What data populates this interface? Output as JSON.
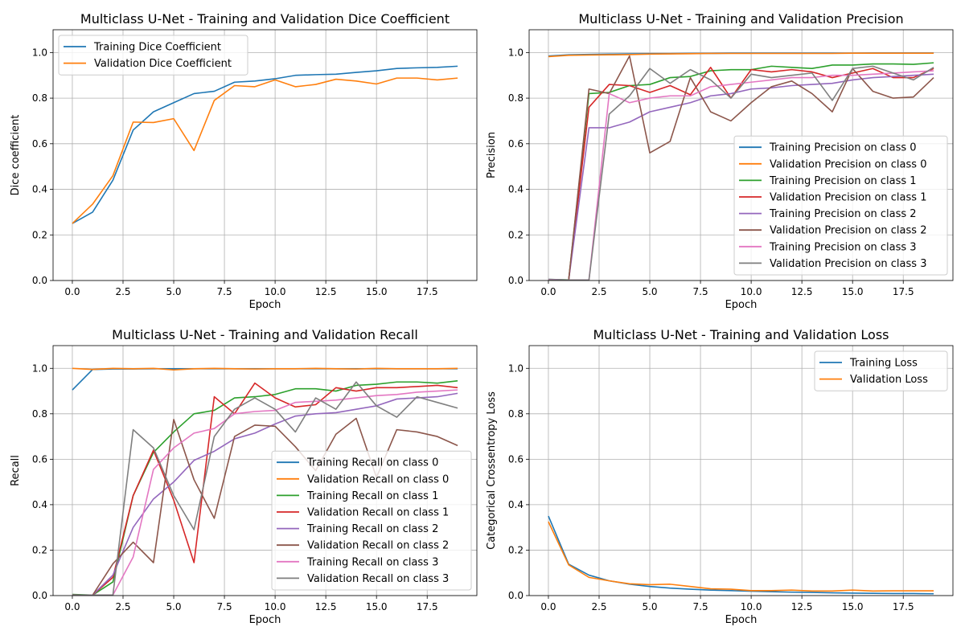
{
  "colors": [
    "#1f77b4",
    "#ff7f0e",
    "#2ca02c",
    "#d62728",
    "#9467bd",
    "#8c564b",
    "#e377c2",
    "#7f7f7f"
  ],
  "chart_data": [
    {
      "type": "line",
      "title": "Multiclass U-Net - Training and Validation Dice Coefficient",
      "xlabel": "Epoch",
      "ylabel": "Dice coefficient",
      "xlim": [
        -0.95,
        19.95
      ],
      "ylim": [
        0,
        1.1
      ],
      "xticks": [
        0,
        2.5,
        5,
        7.5,
        10,
        12.5,
        15,
        17.5
      ],
      "yticks": [
        0,
        0.2,
        0.4,
        0.6,
        0.8,
        1.0
      ],
      "grid": true,
      "legend_position": "top-left",
      "x": [
        0,
        1,
        2,
        3,
        4,
        5,
        6,
        7,
        8,
        9,
        10,
        11,
        12,
        13,
        14,
        15,
        16,
        17,
        18,
        19
      ],
      "series": [
        {
          "name": "Training Dice Coefficient",
          "values": [
            0.25,
            0.3,
            0.44,
            0.66,
            0.74,
            0.78,
            0.82,
            0.83,
            0.87,
            0.875,
            0.885,
            0.9,
            0.903,
            0.905,
            0.913,
            0.92,
            0.93,
            0.933,
            0.935,
            0.94
          ]
        },
        {
          "name": "Validation Dice Coefficient",
          "values": [
            0.25,
            0.335,
            0.46,
            0.695,
            0.693,
            0.71,
            0.57,
            0.79,
            0.855,
            0.85,
            0.88,
            0.85,
            0.86,
            0.883,
            0.875,
            0.862,
            0.888,
            0.888,
            0.88,
            0.888
          ]
        }
      ]
    },
    {
      "type": "line",
      "title": "Multiclass U-Net - Training and Validation Precision",
      "xlabel": "Epoch",
      "ylabel": "Precision",
      "xlim": [
        -0.95,
        19.95
      ],
      "ylim": [
        0,
        1.1
      ],
      "xticks": [
        0,
        2.5,
        5,
        7.5,
        10,
        12.5,
        15,
        17.5
      ],
      "yticks": [
        0,
        0.2,
        0.4,
        0.6,
        0.8,
        1.0
      ],
      "grid": true,
      "legend_position": "bottom-right",
      "x": [
        0,
        1,
        2,
        3,
        4,
        5,
        6,
        7,
        8,
        9,
        10,
        11,
        12,
        13,
        14,
        15,
        16,
        17,
        18,
        19
      ],
      "series": [
        {
          "name": "Training Precision on class 0",
          "values": [
            0.985,
            0.99,
            0.992,
            0.993,
            0.994,
            0.995,
            0.995,
            0.996,
            0.996,
            0.997,
            0.997,
            0.997,
            0.997,
            0.997,
            0.997,
            0.997,
            0.998,
            0.998,
            0.998,
            0.998
          ]
        },
        {
          "name": "Validation Precision on class 0",
          "values": [
            0.982,
            0.988,
            0.989,
            0.99,
            0.991,
            0.993,
            0.994,
            0.995,
            0.996,
            0.996,
            0.996,
            0.996,
            0.996,
            0.996,
            0.996,
            0.997,
            0.997,
            0.997,
            0.997,
            0.997
          ]
        },
        {
          "name": "Training Precision on class 1",
          "values": [
            0.005,
            0.003,
            0.82,
            0.825,
            0.855,
            0.86,
            0.89,
            0.895,
            0.92,
            0.925,
            0.925,
            0.94,
            0.935,
            0.93,
            0.945,
            0.945,
            0.95,
            0.95,
            0.948,
            0.955
          ]
        },
        {
          "name": "Validation Precision on class 1",
          "values": [
            0.003,
            0.002,
            0.76,
            0.86,
            0.855,
            0.825,
            0.855,
            0.815,
            0.935,
            0.8,
            0.925,
            0.915,
            0.925,
            0.915,
            0.89,
            0.91,
            0.93,
            0.89,
            0.89,
            0.93
          ]
        },
        {
          "name": "Training Precision on class 2",
          "values": [
            0.005,
            0.002,
            0.67,
            0.67,
            0.695,
            0.74,
            0.76,
            0.78,
            0.81,
            0.82,
            0.84,
            0.845,
            0.855,
            0.86,
            0.865,
            0.88,
            0.89,
            0.895,
            0.9,
            0.905
          ]
        },
        {
          "name": "Validation Precision on class 2",
          "values": [
            0.003,
            0.002,
            0.84,
            0.82,
            0.985,
            0.56,
            0.61,
            0.89,
            0.74,
            0.7,
            0.78,
            0.85,
            0.875,
            0.82,
            0.74,
            0.93,
            0.83,
            0.8,
            0.805,
            0.89
          ]
        },
        {
          "name": "Training Precision on class 3",
          "values": [
            0.004,
            0.002,
            0.002,
            0.82,
            0.78,
            0.8,
            0.81,
            0.81,
            0.85,
            0.86,
            0.87,
            0.88,
            0.89,
            0.89,
            0.9,
            0.9,
            0.905,
            0.91,
            0.915,
            0.92
          ]
        },
        {
          "name": "Validation Precision on class 3",
          "values": [
            0.003,
            0.002,
            0.002,
            0.73,
            0.81,
            0.93,
            0.865,
            0.925,
            0.88,
            0.8,
            0.905,
            0.89,
            0.9,
            0.91,
            0.79,
            0.93,
            0.94,
            0.91,
            0.88,
            0.935
          ]
        }
      ]
    },
    {
      "type": "line",
      "title": "Multiclass U-Net - Training and Validation Recall",
      "xlabel": "Epoch",
      "ylabel": "Recall",
      "xlim": [
        -0.95,
        19.95
      ],
      "ylim": [
        0,
        1.1
      ],
      "xticks": [
        0,
        2.5,
        5,
        7.5,
        10,
        12.5,
        15,
        17.5
      ],
      "yticks": [
        0,
        0.2,
        0.4,
        0.6,
        0.8,
        1.0
      ],
      "grid": true,
      "legend_position": "bottom-right",
      "x": [
        0,
        1,
        2,
        3,
        4,
        5,
        6,
        7,
        8,
        9,
        10,
        11,
        12,
        13,
        14,
        15,
        16,
        17,
        18,
        19
      ],
      "series": [
        {
          "name": "Training Recall on class 0",
          "values": [
            0.905,
            0.995,
            0.997,
            0.997,
            0.998,
            0.998,
            0.998,
            0.998,
            0.998,
            0.998,
            0.998,
            0.998,
            0.998,
            0.998,
            0.998,
            0.998,
            0.998,
            0.998,
            0.998,
            0.998
          ]
        },
        {
          "name": "Validation Recall on class 0",
          "values": [
            1.0,
            0.995,
            1.0,
            0.998,
            1.0,
            0.993,
            0.998,
            1.0,
            0.998,
            0.997,
            0.998,
            0.998,
            1.0,
            0.998,
            0.997,
            1.0,
            0.998,
            0.998,
            0.998,
            1.0
          ]
        },
        {
          "name": "Training Recall on class 1",
          "values": [
            0.005,
            0.002,
            0.06,
            0.44,
            0.63,
            0.72,
            0.8,
            0.815,
            0.87,
            0.875,
            0.885,
            0.91,
            0.91,
            0.9,
            0.925,
            0.93,
            0.94,
            0.94,
            0.935,
            0.945
          ]
        },
        {
          "name": "Validation Recall on class 1",
          "values": [
            0.003,
            0.002,
            0.08,
            0.44,
            0.64,
            0.42,
            0.145,
            0.875,
            0.8,
            0.935,
            0.87,
            0.83,
            0.84,
            0.915,
            0.9,
            0.915,
            0.915,
            0.92,
            0.925,
            0.915
          ]
        },
        {
          "name": "Training Recall on class 2",
          "values": [
            0.003,
            0.002,
            0.09,
            0.3,
            0.425,
            0.5,
            0.595,
            0.635,
            0.69,
            0.715,
            0.755,
            0.79,
            0.8,
            0.805,
            0.82,
            0.835,
            0.865,
            0.87,
            0.875,
            0.89
          ]
        },
        {
          "name": "Validation Recall on class 2",
          "values": [
            0.003,
            0.002,
            0.14,
            0.235,
            0.145,
            0.775,
            0.51,
            0.34,
            0.7,
            0.75,
            0.745,
            0.655,
            0.55,
            0.71,
            0.78,
            0.52,
            0.73,
            0.72,
            0.7,
            0.66
          ]
        },
        {
          "name": "Training Recall on class 3",
          "values": [
            0.002,
            0.002,
            0.002,
            0.17,
            0.555,
            0.65,
            0.715,
            0.735,
            0.8,
            0.81,
            0.815,
            0.85,
            0.855,
            0.86,
            0.87,
            0.88,
            0.885,
            0.895,
            0.9,
            0.905
          ]
        },
        {
          "name": "Validation Recall on class 3",
          "values": [
            0.003,
            0.002,
            0.002,
            0.73,
            0.65,
            0.44,
            0.29,
            0.7,
            0.82,
            0.87,
            0.82,
            0.72,
            0.87,
            0.82,
            0.94,
            0.835,
            0.785,
            0.875,
            0.85,
            0.825
          ]
        }
      ]
    },
    {
      "type": "line",
      "title": "Multiclass U-Net - Training and Validation Loss",
      "xlabel": "Epoch",
      "ylabel": "Categorical Crossentropy Loss",
      "xlim": [
        -0.95,
        19.95
      ],
      "ylim": [
        0,
        1.1
      ],
      "xticks": [
        0,
        2.5,
        5,
        7.5,
        10,
        12.5,
        15,
        17.5
      ],
      "yticks": [
        0,
        0.2,
        0.4,
        0.6,
        0.8,
        1.0
      ],
      "grid": true,
      "legend_position": "top-right",
      "x": [
        0,
        1,
        2,
        3,
        4,
        5,
        6,
        7,
        8,
        9,
        10,
        11,
        12,
        13,
        14,
        15,
        16,
        17,
        18,
        19
      ],
      "series": [
        {
          "name": "Training Loss",
          "values": [
            0.35,
            0.138,
            0.09,
            0.065,
            0.05,
            0.04,
            0.033,
            0.028,
            0.024,
            0.022,
            0.019,
            0.017,
            0.015,
            0.014,
            0.012,
            0.011,
            0.01,
            0.009,
            0.009,
            0.008
          ]
        },
        {
          "name": "Validation Loss",
          "values": [
            0.325,
            0.135,
            0.08,
            0.065,
            0.052,
            0.048,
            0.05,
            0.04,
            0.03,
            0.028,
            0.022,
            0.022,
            0.024,
            0.02,
            0.02,
            0.024,
            0.02,
            0.021,
            0.021,
            0.021
          ]
        }
      ]
    }
  ]
}
